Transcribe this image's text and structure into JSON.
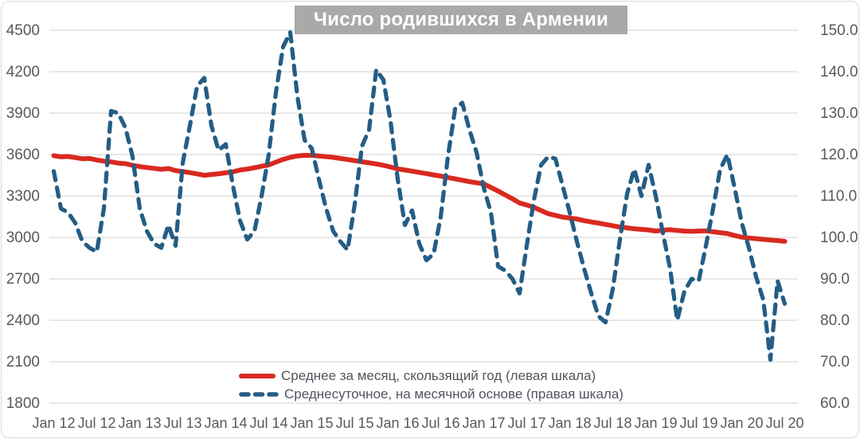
{
  "title": {
    "text": "Число родившихся в Армении",
    "bg_color": "#a9a9a9",
    "text_color": "#ffffff"
  },
  "legend": {
    "position": "bottom",
    "items": [
      {
        "label": "Среднее за месяц, скользящий год (левая шкала)",
        "color": "#d9291f",
        "line_style": "solid"
      },
      {
        "label": "Среднесуточное, на месячной основе (правая шкала)",
        "color": "#245d85",
        "line_style": "dashed"
      }
    ]
  },
  "axes": {
    "label_color": "#595959",
    "gridline_color": "#d9d9d9",
    "left_tick_labels": [
      "4500",
      "4200",
      "3900",
      "3600",
      "3300",
      "3000",
      "2700",
      "2400",
      "2100",
      "1800"
    ],
    "right_tick_labels": [
      "150.0",
      "140.0",
      "130.0",
      "120.0",
      "110.0",
      "100.0",
      "90.0",
      "80.0",
      "70.0",
      "60.0"
    ],
    "x_tick_labels": [
      "Jan 12",
      "Jul 12",
      "Jan 13",
      "Jul 13",
      "Jan 14",
      "Jul 14",
      "Jan 15",
      "Jul 15",
      "Jan 16",
      "Jul 16",
      "Jan 17",
      "Jul 17",
      "Jan 18",
      "Jul 18",
      "Jan 19",
      "Jul 19",
      "Jan 20",
      "Jul 20"
    ]
  },
  "chart_data": {
    "type": "line",
    "title": "Число родившихся в Армении",
    "x_start_month": "Jan 2012",
    "x_end_month": "Jul 2020",
    "x_interval": "monthly",
    "x_tick_labels": [
      "Jan 12",
      "Jul 12",
      "Jan 13",
      "Jul 13",
      "Jan 14",
      "Jul 14",
      "Jan 15",
      "Jul 15",
      "Jan 16",
      "Jul 16",
      "Jan 17",
      "Jul 17",
      "Jan 18",
      "Jul 18",
      "Jan 19",
      "Jul 19",
      "Jan 20",
      "Jul 20"
    ],
    "left_axis": {
      "min": 1800,
      "max": 4500,
      "step": 300
    },
    "right_axis": {
      "min": 60.0,
      "max": 150.0,
      "step": 10.0
    },
    "grid": "horizontal",
    "legend_position": "bottom",
    "series": [
      {
        "name": "Среднее за месяц, скользящий год (левая шкала)",
        "axis": "left",
        "color": "#d9291f",
        "style": "solid",
        "values": [
          3592,
          3584,
          3586,
          3578,
          3570,
          3572,
          3561,
          3552,
          3547,
          3538,
          3534,
          3522,
          3513,
          3506,
          3500,
          3493,
          3499,
          3484,
          3477,
          3469,
          3460,
          3450,
          3456,
          3461,
          3468,
          3475,
          3488,
          3495,
          3505,
          3515,
          3525,
          3545,
          3565,
          3580,
          3590,
          3595,
          3594,
          3590,
          3585,
          3580,
          3572,
          3564,
          3556,
          3548,
          3540,
          3532,
          3522,
          3510,
          3496,
          3488,
          3480,
          3471,
          3462,
          3453,
          3444,
          3434,
          3424,
          3414,
          3404,
          3396,
          3388,
          3362,
          3336,
          3308,
          3280,
          3250,
          3235,
          3218,
          3195,
          3172,
          3160,
          3147,
          3140,
          3133,
          3122,
          3112,
          3104,
          3094,
          3085,
          3075,
          3069,
          3063,
          3058,
          3054,
          3046,
          3052,
          3056,
          3050,
          3046,
          3044,
          3046,
          3048,
          3041,
          3034,
          3028,
          3014,
          3002,
          2996,
          2991,
          2986,
          2981,
          2977,
          2972
        ]
      },
      {
        "name": "Среднесуточное, на месячной основе (правая шкала)",
        "axis": "right",
        "color": "#245d85",
        "style": "dashed",
        "values": [
          116,
          107,
          106,
          103.5,
          99,
          97.5,
          96.5,
          107,
          130.5,
          130,
          126.5,
          119.5,
          107,
          101.5,
          98.5,
          97.5,
          103,
          98,
          118,
          127,
          136.5,
          138.5,
          127,
          121,
          122.5,
          112.5,
          104,
          99.5,
          101.5,
          110,
          120,
          135,
          146,
          149.5,
          134,
          123.5,
          121.5,
          114,
          107,
          101.5,
          99,
          97,
          108,
          122,
          126,
          140.5,
          138,
          128,
          114,
          103,
          106.5,
          98.5,
          94.5,
          96,
          105,
          119.5,
          131,
          132.5,
          126,
          120.5,
          112,
          106,
          93,
          92,
          90,
          86.5,
          98,
          109,
          117.5,
          119.5,
          119,
          112.5,
          106,
          99,
          92.5,
          86.5,
          81,
          79.5,
          87.5,
          99.5,
          110.5,
          116.5,
          110,
          117.5,
          110,
          101,
          92.5,
          80,
          87,
          90,
          89.5,
          98,
          107,
          116.5,
          120,
          112,
          103.5,
          97.5,
          90.5,
          85,
          70.5,
          89.5,
          84
        ]
      }
    ]
  }
}
